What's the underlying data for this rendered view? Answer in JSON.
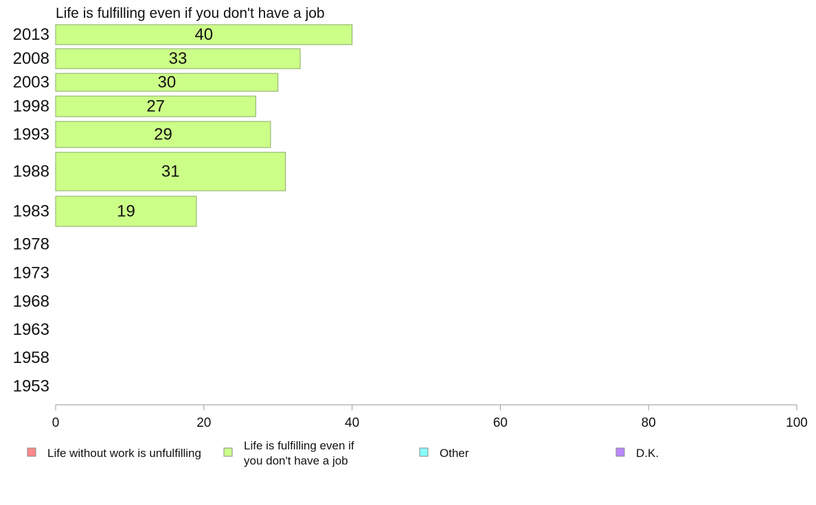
{
  "chart_data": {
    "type": "bar",
    "orientation": "horizontal",
    "title": "Life is fulfilling even if you don't have a job",
    "categories": [
      "2013",
      "2008",
      "2003",
      "1998",
      "1993",
      "1988",
      "1983",
      "1978",
      "1973",
      "1968",
      "1963",
      "1958",
      "1953"
    ],
    "series": [
      {
        "name": "Life is fulfilling even if you don't have a job",
        "values": [
          40,
          33,
          30,
          27,
          29,
          31,
          19,
          null,
          null,
          null,
          null,
          null,
          null
        ],
        "color": "#ccff88"
      }
    ],
    "data_labels": [
      "40",
      "33",
      "30",
      "27",
      "29",
      "31",
      "19",
      "",
      "",
      "",
      "",
      "",
      ""
    ],
    "xlim": [
      0,
      100
    ],
    "xticks": [
      "0",
      "20",
      "40",
      "60",
      "80",
      "100"
    ],
    "grid": false,
    "legend_position": "bottom",
    "legend": [
      {
        "label": "Life without work is unfulfilling",
        "color": "#ff8888"
      },
      {
        "label": "Life is fulfilling even if you don't have a job",
        "color": "#ccff88"
      },
      {
        "label": "Other",
        "color": "#88ffff"
      },
      {
        "label": "D.K.",
        "color": "#bb88ff"
      }
    ]
  }
}
